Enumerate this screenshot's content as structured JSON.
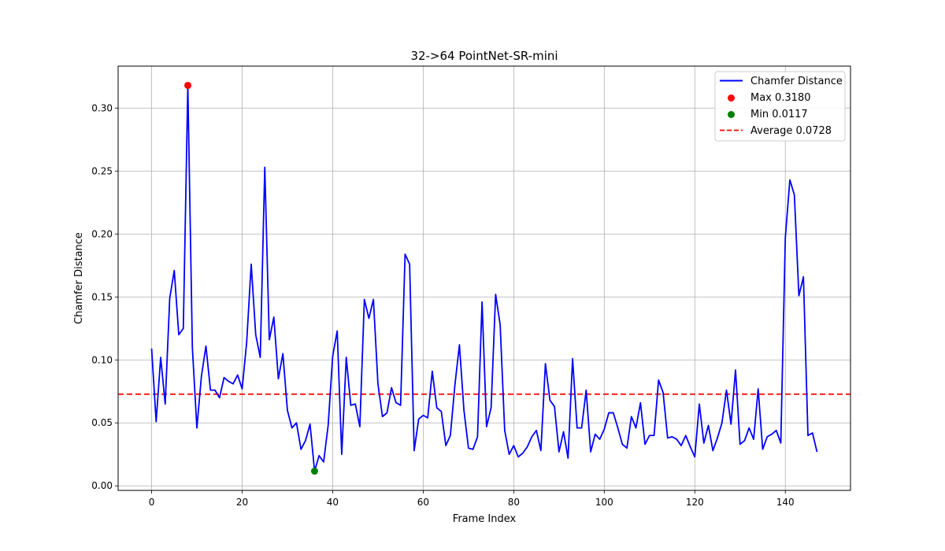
{
  "chart_data": {
    "type": "line",
    "title": "32->64 PointNet-SR-mini",
    "xlabel": "Frame Index",
    "ylabel": "Chamfer Distance",
    "xlim": [
      -7.4,
      154.4
    ],
    "ylim": [
      -0.0036,
      0.3333
    ],
    "xticks": [
      0,
      20,
      40,
      60,
      80,
      100,
      120,
      140
    ],
    "yticks": [
      0.0,
      0.05,
      0.1,
      0.15,
      0.2,
      0.25,
      0.3
    ],
    "ytick_labels": [
      "0.00",
      "0.05",
      "0.10",
      "0.15",
      "0.20",
      "0.25",
      "0.30"
    ],
    "grid": true,
    "legend_position": "top-right",
    "series": [
      {
        "name": "Chamfer Distance",
        "color": "#0000ff",
        "y": [
          0.109,
          0.051,
          0.102,
          0.065,
          0.149,
          0.171,
          0.12,
          0.125,
          0.318,
          0.11,
          0.046,
          0.087,
          0.111,
          0.076,
          0.076,
          0.07,
          0.086,
          0.083,
          0.081,
          0.088,
          0.077,
          0.114,
          0.176,
          0.12,
          0.102,
          0.253,
          0.116,
          0.134,
          0.085,
          0.105,
          0.06,
          0.046,
          0.05,
          0.029,
          0.036,
          0.049,
          0.0117,
          0.024,
          0.019,
          0.048,
          0.103,
          0.123,
          0.025,
          0.102,
          0.064,
          0.065,
          0.047,
          0.148,
          0.133,
          0.148,
          0.081,
          0.055,
          0.058,
          0.078,
          0.066,
          0.064,
          0.184,
          0.176,
          0.028,
          0.053,
          0.056,
          0.054,
          0.091,
          0.062,
          0.059,
          0.032,
          0.04,
          0.08,
          0.112,
          0.06,
          0.03,
          0.029,
          0.039,
          0.146,
          0.047,
          0.062,
          0.152,
          0.128,
          0.044,
          0.025,
          0.032,
          0.023,
          0.026,
          0.031,
          0.039,
          0.044,
          0.028,
          0.097,
          0.068,
          0.063,
          0.027,
          0.043,
          0.022,
          0.101,
          0.046,
          0.046,
          0.076,
          0.027,
          0.041,
          0.037,
          0.045,
          0.058,
          0.058,
          0.046,
          0.033,
          0.03,
          0.055,
          0.046,
          0.066,
          0.033,
          0.04,
          0.04,
          0.084,
          0.074,
          0.038,
          0.039,
          0.037,
          0.032,
          0.04,
          0.031,
          0.023,
          0.065,
          0.034,
          0.048,
          0.028,
          0.038,
          0.05,
          0.076,
          0.049,
          0.092,
          0.033,
          0.036,
          0.046,
          0.037,
          0.077,
          0.029,
          0.039,
          0.041,
          0.044,
          0.034,
          0.197,
          0.243,
          0.231,
          0.151,
          0.166,
          0.04,
          0.042,
          0.027
        ]
      }
    ],
    "max_point": {
      "label": "Max 0.3180",
      "x": 8,
      "y": 0.318,
      "color": "#ff0000"
    },
    "min_point": {
      "label": "Min 0.0117",
      "x": 36,
      "y": 0.0117,
      "color": "#008000"
    },
    "average": {
      "label": "Average 0.0728",
      "y": 0.0728,
      "color": "#ff0000"
    }
  }
}
